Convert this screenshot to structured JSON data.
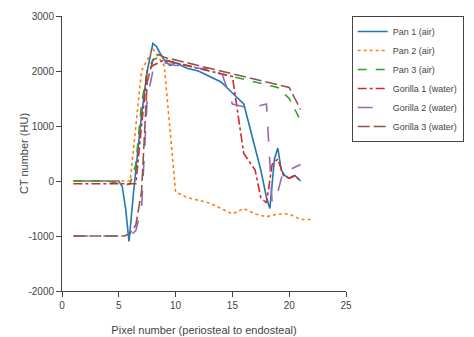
{
  "chart_data": {
    "type": "line",
    "xlabel": "Pixel number (periosteal to endosteal)",
    "ylabel": "CT number (HU)",
    "xlim": [
      0,
      25
    ],
    "ylim": [
      -2000,
      3000
    ],
    "xticks": [
      0,
      5,
      10,
      15,
      20,
      25
    ],
    "yticks": [
      -2000,
      -1000,
      0,
      1000,
      2000,
      3000
    ],
    "grid": false,
    "legend": "right",
    "series": [
      {
        "name": "Pan 1 (air)",
        "line_style": "solid",
        "x": [
          1,
          2,
          3,
          4,
          5,
          5.3,
          5.6,
          5.9,
          6.3,
          7,
          7.5,
          8,
          8.3,
          8.7,
          9,
          9.5,
          10,
          11,
          12,
          13,
          14,
          15,
          16,
          17,
          17.5,
          18,
          18.3,
          18.7,
          19,
          19.3,
          19.6,
          20,
          20.5,
          21
        ],
        "values": [
          0,
          0,
          0,
          0,
          0,
          -100,
          -500,
          -1100,
          -200,
          1200,
          2000,
          2500,
          2450,
          2300,
          2200,
          2100,
          2150,
          2050,
          2000,
          1900,
          1800,
          1600,
          1400,
          600,
          200,
          -300,
          -500,
          400,
          600,
          200,
          100,
          50,
          100,
          0
        ]
      },
      {
        "name": "Pan 2 (air)",
        "line_style": "dotted",
        "x": [
          1,
          2,
          3,
          4,
          5,
          6,
          7,
          8,
          9,
          10,
          11,
          12,
          13,
          14,
          15,
          16,
          17,
          18,
          19,
          20,
          21,
          22
        ],
        "values": [
          0,
          0,
          0,
          0,
          0,
          0,
          2000,
          2400,
          2100,
          -200,
          -300,
          -350,
          -400,
          -500,
          -600,
          -500,
          -600,
          -650,
          -600,
          -600,
          -700,
          -700
        ]
      },
      {
        "name": "Pan 3 (air)",
        "line_style": "dashed",
        "x": [
          1,
          2,
          3,
          4,
          5,
          5.5,
          6,
          6.5,
          7,
          7.5,
          8,
          8.5,
          9,
          10,
          11,
          12,
          13,
          14,
          15,
          16,
          17,
          18,
          19,
          20,
          20.5,
          21
        ],
        "values": [
          0,
          0,
          0,
          0,
          -50,
          -80,
          -50,
          300,
          1400,
          2000,
          2200,
          2250,
          2200,
          2150,
          2100,
          2050,
          2000,
          1950,
          1900,
          1850,
          1800,
          1750,
          1700,
          1500,
          1300,
          1100
        ]
      },
      {
        "name": "Gorilla 1 (water)",
        "line_style": "dashdot",
        "x": [
          1,
          2,
          3,
          4,
          5,
          5.5,
          6,
          6.5,
          7,
          7.5,
          8,
          8.5,
          9,
          10,
          11,
          12,
          13,
          14,
          15,
          16,
          17,
          17.5,
          18,
          18.5,
          19,
          19.5,
          20,
          20.5,
          21
        ],
        "values": [
          -50,
          -50,
          -50,
          -50,
          -50,
          -50,
          -50,
          -50,
          1000,
          2000,
          2100,
          2150,
          2200,
          2150,
          2100,
          2050,
          2000,
          1950,
          1900,
          500,
          200,
          -300,
          -400,
          300,
          400,
          100,
          50,
          100,
          0
        ]
      },
      {
        "name": "Gorilla 2 (water)",
        "line_style": "longdash",
        "x": [
          1,
          2,
          3,
          4,
          5,
          5.5,
          6,
          6.5,
          7,
          7.5,
          8,
          8.5,
          9,
          10,
          11,
          12,
          13,
          14,
          15,
          16,
          17,
          18,
          18.5,
          19,
          19.5,
          20,
          20.5,
          21
        ],
        "values": [
          -1000,
          -1000,
          -1000,
          -1000,
          -1000,
          -1000,
          -1000,
          -900,
          -500,
          1500,
          2000,
          2050,
          2150,
          2100,
          2100,
          2050,
          2050,
          2000,
          1400,
          1350,
          1350,
          1400,
          -400,
          -200,
          200,
          200,
          250,
          300
        ]
      },
      {
        "name": "Gorilla 3 (water)",
        "line_style": "extralongdash",
        "x": [
          1,
          2,
          3,
          4,
          5,
          5.5,
          6,
          6.5,
          7,
          7.5,
          8,
          8.5,
          9,
          10,
          11,
          12,
          13,
          14,
          15,
          16,
          17,
          18,
          19,
          20,
          20.5,
          21
        ],
        "values": [
          -1000,
          -1000,
          -1000,
          -1000,
          -1000,
          -1000,
          -950,
          -800,
          -200,
          1800,
          2200,
          2300,
          2250,
          2200,
          2150,
          2100,
          2050,
          2000,
          1950,
          1900,
          1850,
          1800,
          1750,
          1700,
          1500,
          1300
        ]
      }
    ]
  }
}
